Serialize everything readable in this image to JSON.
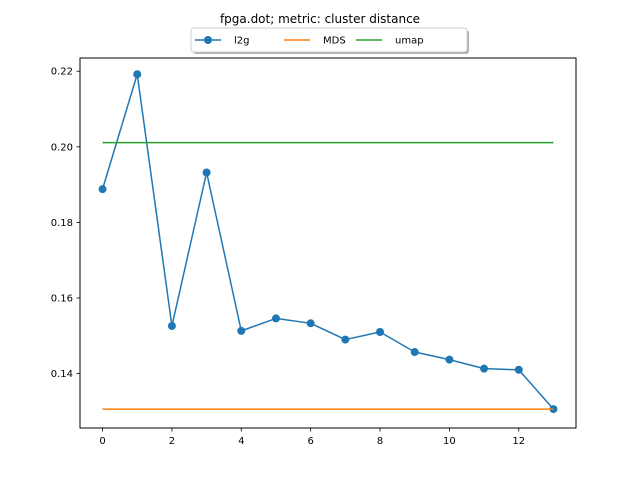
{
  "chart_data": {
    "type": "line",
    "title": "fpga.dot; metric: cluster distance",
    "xlabel": "",
    "ylabel": "",
    "xlim": [
      -0.65,
      13.65
    ],
    "ylim": [
      0.1256,
      0.2235
    ],
    "x_ticks": [
      0,
      2,
      4,
      6,
      8,
      10,
      12
    ],
    "y_ticks": [
      0.14,
      0.16,
      0.18,
      0.2,
      0.22
    ],
    "y_tick_labels": [
      "0.14",
      "0.16",
      "0.18",
      "0.20",
      "0.22"
    ],
    "grid": false,
    "legend_position": "top-center",
    "series": [
      {
        "name": "l2g",
        "color": "#1f77b4",
        "marker": "circle",
        "x": [
          0,
          1,
          2,
          3,
          4,
          5,
          6,
          7,
          8,
          9,
          10,
          11,
          12,
          13
        ],
        "values": [
          0.1888,
          0.2192,
          0.1526,
          0.1932,
          0.1513,
          0.1546,
          0.1533,
          0.149,
          0.151,
          0.1457,
          0.1437,
          0.1413,
          0.141,
          0.1306
        ]
      },
      {
        "name": "MDS",
        "color": "#ff7f0e",
        "marker": "none",
        "x": [
          0,
          13
        ],
        "values": [
          0.1306,
          0.1306
        ]
      },
      {
        "name": "umap",
        "color": "#2ca02c",
        "marker": "none",
        "x": [
          0,
          13
        ],
        "values": [
          0.2011,
          0.2011
        ]
      }
    ]
  }
}
